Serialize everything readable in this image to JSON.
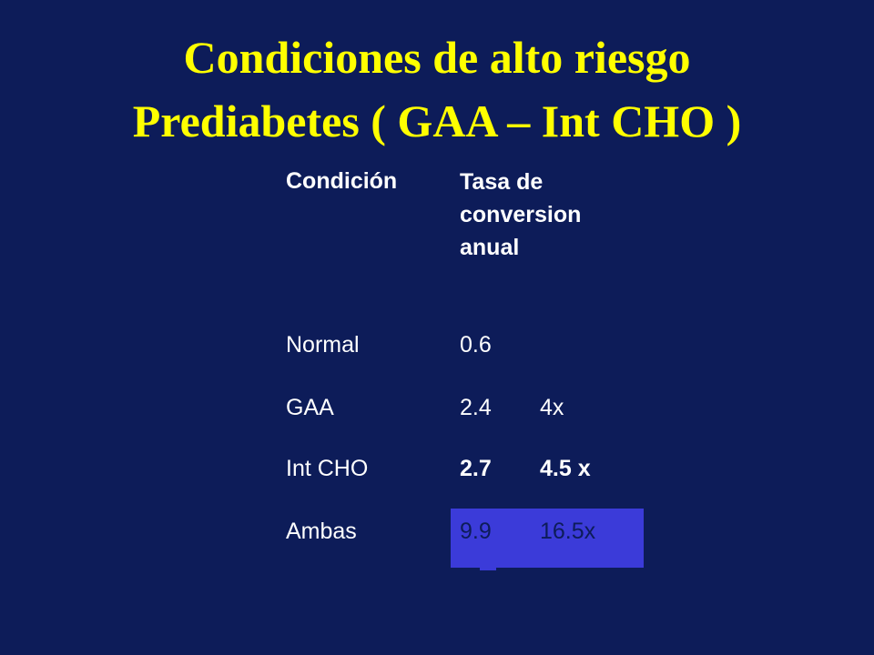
{
  "slide": {
    "title_line1": "Condiciones de alto riesgo",
    "title_line2": "Prediabetes ( GAA – Int CHO )"
  },
  "table": {
    "headers": {
      "condition": "Condición",
      "rate": "Tasa de conversion anual"
    },
    "rows": [
      {
        "condition": "Normal",
        "rate": "0.6",
        "factor": ""
      },
      {
        "condition": "GAA",
        "rate": "2.4",
        "factor": "4x"
      },
      {
        "condition": "Int CHO",
        "rate": "2.7",
        "factor": "4.5 x"
      },
      {
        "condition": "Ambas",
        "rate": "9.9",
        "factor": "16.5x"
      }
    ]
  },
  "colors": {
    "background": "#0d1c59",
    "title": "#ffff00",
    "text": "#ffffff",
    "highlight": "#3b3bd9"
  }
}
